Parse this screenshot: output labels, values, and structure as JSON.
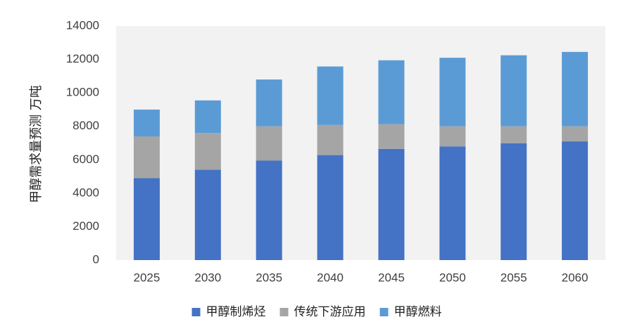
{
  "chart_data": {
    "type": "bar",
    "stacked": true,
    "title": "",
    "xlabel": "",
    "ylabel": "甲醇需求量预测  万吨",
    "categories": [
      "2025",
      "2030",
      "2035",
      "2040",
      "2045",
      "2050",
      "2055",
      "2060"
    ],
    "ylim": [
      0,
      14000
    ],
    "yticks": [
      0,
      2000,
      4000,
      6000,
      8000,
      10000,
      12000,
      14000
    ],
    "grid": false,
    "legend_position": "bottom",
    "plot_background": "#f2f2f2",
    "series": [
      {
        "name": "甲醇制烯烃",
        "color": "#4472c4",
        "values": [
          4900,
          5400,
          5950,
          6280,
          6650,
          6800,
          6980,
          7100
        ]
      },
      {
        "name": "传统下游应用",
        "color": "#a5a5a5",
        "values": [
          2500,
          2200,
          2050,
          1800,
          1480,
          1200,
          1020,
          900
        ]
      },
      {
        "name": "甲醇燃料",
        "color": "#5b9bd5",
        "values": [
          1600,
          1950,
          2800,
          3500,
          3820,
          4100,
          4250,
          4450
        ]
      }
    ]
  }
}
